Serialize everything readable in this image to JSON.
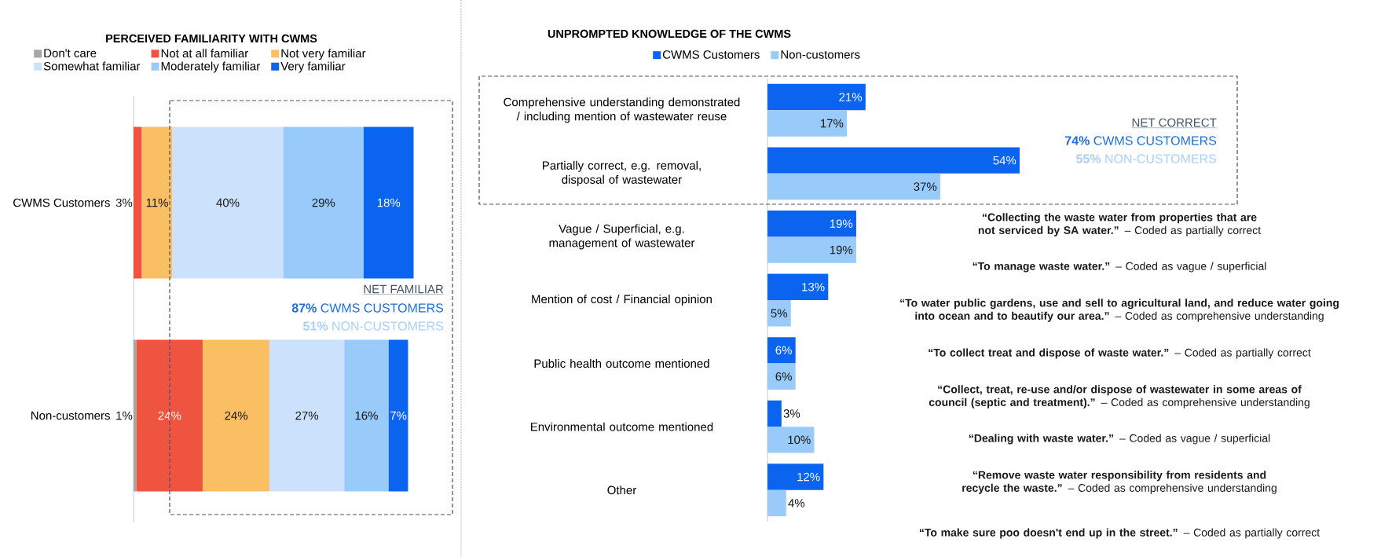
{
  "chart_data": [
    {
      "type": "bar",
      "orientation": "horizontal",
      "stacked": true,
      "title": "PERCEIVED FAMILIARITY WITH CWMS",
      "categories": [
        "CWMS Customers",
        "Non-customers"
      ],
      "xlim": [
        0,
        101
      ],
      "tick_labels": "y",
      "legend": "top",
      "series": [
        {
          "name": "Don't care",
          "color": "#a6a6a6",
          "values": [
            null,
            1
          ],
          "value_labels": [
            null,
            "1%"
          ]
        },
        {
          "name": "Not at all familiar",
          "color": "#ee5440",
          "values": [
            3,
            24
          ],
          "value_labels": [
            "3%",
            "24%"
          ]
        },
        {
          "name": "Not very familiar",
          "color": "#fbbf63",
          "values": [
            11,
            24
          ],
          "value_labels": [
            "11%",
            "24%"
          ]
        },
        {
          "name": "Somewhat familiar",
          "color": "#cce1fc",
          "values": [
            40,
            27
          ],
          "value_labels": [
            "40%",
            "27%"
          ]
        },
        {
          "name": "Moderately familiar",
          "color": "#99cbfa",
          "values": [
            29,
            16
          ],
          "value_labels": [
            "29%",
            "16%"
          ]
        },
        {
          "name": "Very familiar",
          "color": "#0a64f0",
          "values": [
            18,
            7
          ],
          "value_labels": [
            "18%",
            "7%"
          ]
        }
      ],
      "annotations": [
        "NET FAMILIAR",
        "**87%** CWMS CUSTOMERS",
        "**51%** NON-CUSTOMERS"
      ]
    },
    {
      "type": "bar",
      "orientation": "horizontal",
      "title": "UNPROMPTED KNOWLEDGE OF THE CWMS",
      "categories": [
        "Comprehensive understanding demonstrated / including mention of wastewater reuse",
        "Partially correct, e.g. removal, disposal of wastewater",
        "Vague / Superficial, e.g. management of wastewater",
        "Mention of cost / Financial opinion",
        "Public health outcome mentioned",
        "Environmental outcome mentioned",
        "Other"
      ],
      "tick_labels": "y",
      "legend": "top",
      "series": [
        {
          "name": "CWMS Customers",
          "color": "#0a64f0",
          "values": [
            21,
            54,
            19,
            13,
            6,
            3,
            12
          ],
          "value_labels": [
            "21%",
            "54%",
            "19%",
            "13%",
            "6%",
            "3%",
            "12%"
          ]
        },
        {
          "name": "Non-customers",
          "color": "#99cbfa",
          "values": [
            17,
            37,
            19,
            5,
            6,
            10,
            4
          ],
          "value_labels": [
            "17%",
            "37%",
            "19%",
            "5%",
            "6%",
            "10%",
            "4%"
          ]
        }
      ],
      "annotations": [
        "NET CORRECT",
        "**74%** CWMS CUSTOMERS",
        "**55%** NON-CUSTOMERS",
        "**“Collecting the waste water from properties that are not serviced by SA water.”** – Coded as partially correct",
        "**“To manage waste water.”** – Coded as vague / superficial",
        "**“To water public gardens, use and sell  to agricultural land, and reduce water going into ocean and to beautify our area.”** – Coded as comprehensive understanding",
        "**“To collect treat and dispose of waste water.”** – Coded as partially correct",
        "**“Collect, treat, re-use and/or dispose of wastewater in some areas of council (septic and treatment).”** – Coded as comprehensive understanding",
        "**“Dealing with waste water.”** – Coded as vague / superficial",
        "**“Remove waste water responsibility from residents and recycle the waste.”** – Coded as comprehensive understanding",
        "**“To make sure poo doesn't end up in the street.”** – Coded as partially correct"
      ]
    }
  ]
}
